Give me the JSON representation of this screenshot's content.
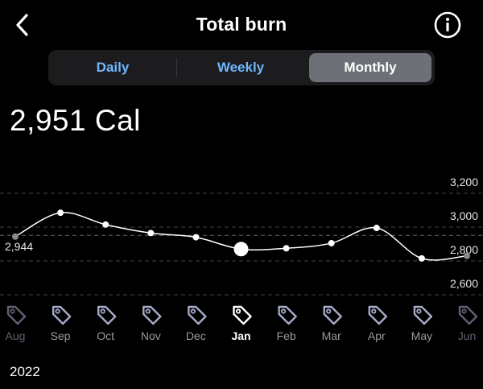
{
  "header": {
    "title": "Total burn",
    "back_icon": "chevron-left-icon",
    "info_icon": "info-circle-icon"
  },
  "tabs": [
    {
      "label": "Daily",
      "active": false
    },
    {
      "label": "Weekly",
      "active": false
    },
    {
      "label": "Monthly",
      "active": true
    }
  ],
  "summary": {
    "value": "2,951 Cal"
  },
  "colors": {
    "background": "#000000",
    "tab_inactive_text": "#6fb7ff",
    "tab_active_bg": "#6d7076",
    "line": "#ffffff",
    "grid": "#444444"
  },
  "chart_data": {
    "type": "line",
    "categories": [
      "Aug",
      "Sep",
      "Oct",
      "Nov",
      "Dec",
      "Jan",
      "Feb",
      "Mar",
      "Apr",
      "May",
      "Jun"
    ],
    "values": [
      2944,
      3085,
      3015,
      2965,
      2940,
      2870,
      2875,
      2905,
      2995,
      2815,
      2830
    ],
    "selected_category": "Jan",
    "dimmed_categories": [
      "Aug",
      "Jun"
    ],
    "highlight_label": "2,944",
    "y_ticks": [
      3200,
      3000,
      2800,
      2600
    ],
    "y_tick_labels": [
      "3,200",
      "3,000",
      "2,800",
      "2,600"
    ],
    "ylim": [
      2600,
      3200
    ],
    "reference_value": 2951,
    "axis_side": "right",
    "category_icon": "tag-icon",
    "title": "",
    "xlabel": "",
    "ylabel": ""
  },
  "footer": {
    "year": "2022"
  }
}
